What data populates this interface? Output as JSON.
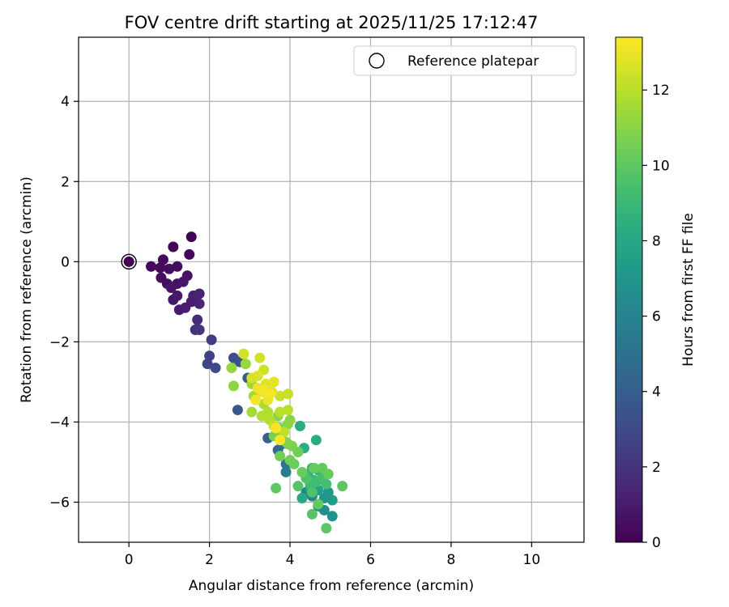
{
  "chart_data": {
    "type": "scatter",
    "title": "FOV centre drift starting at 2025/11/25 17:12:47",
    "xlabel": "Angular distance from reference (arcmin)",
    "ylabel": "Rotation from reference (arcmin)",
    "xlim": [
      -1.25,
      11.3
    ],
    "ylim": [
      -7.0,
      5.6
    ],
    "x_ticks": [
      0,
      2,
      4,
      6,
      8,
      10
    ],
    "y_ticks": [
      -6,
      -4,
      -2,
      0,
      2,
      4
    ],
    "x_tick_labels": [
      "0",
      "2",
      "4",
      "6",
      "8",
      "10"
    ],
    "y_tick_labels": [
      "−6",
      "−4",
      "−2",
      "0",
      "2",
      "4"
    ],
    "grid": true,
    "legend": {
      "position": "top-right",
      "entries": [
        {
          "label": "Reference platepar",
          "marker": "open-circle"
        }
      ]
    },
    "reference_point": {
      "x": 0,
      "y": 0
    },
    "colorbar": {
      "label": "Hours from first FF file",
      "colormap": "viridis",
      "range": [
        0,
        13.4
      ],
      "ticks": [
        0,
        2,
        4,
        6,
        8,
        10,
        12
      ],
      "tick_labels": [
        "0",
        "2",
        "4",
        "6",
        "8",
        "10",
        "12"
      ]
    },
    "series": [
      {
        "name": "FOV centre drift",
        "points": [
          [
            0.0,
            0.0,
            0.0
          ],
          [
            1.55,
            0.62,
            0.1
          ],
          [
            1.1,
            0.37,
            0.15
          ],
          [
            1.5,
            0.18,
            0.2
          ],
          [
            0.55,
            -0.12,
            0.25
          ],
          [
            0.85,
            0.05,
            0.3
          ],
          [
            0.78,
            -0.15,
            0.35
          ],
          [
            1.2,
            -0.12,
            0.4
          ],
          [
            1.0,
            -0.18,
            0.45
          ],
          [
            0.8,
            -0.4,
            0.5
          ],
          [
            0.95,
            -0.55,
            0.55
          ],
          [
            1.2,
            -0.55,
            0.6
          ],
          [
            1.45,
            -0.35,
            0.7
          ],
          [
            1.05,
            -0.65,
            0.75
          ],
          [
            1.35,
            -0.5,
            0.8
          ],
          [
            1.1,
            -0.95,
            0.85
          ],
          [
            1.2,
            -0.85,
            0.9
          ],
          [
            1.25,
            -1.2,
            1.0
          ],
          [
            1.4,
            -1.15,
            1.05
          ],
          [
            1.55,
            -1.0,
            1.1
          ],
          [
            1.6,
            -0.85,
            1.2
          ],
          [
            1.75,
            -0.8,
            1.3
          ],
          [
            1.75,
            -1.05,
            1.4
          ],
          [
            1.7,
            -1.45,
            1.6
          ],
          [
            1.65,
            -1.7,
            1.8
          ],
          [
            1.75,
            -1.7,
            2.0
          ],
          [
            2.05,
            -1.95,
            2.4
          ],
          [
            2.0,
            -2.35,
            2.6
          ],
          [
            1.95,
            -2.55,
            2.8
          ],
          [
            2.15,
            -2.65,
            3.0
          ],
          [
            2.6,
            -2.4,
            3.2
          ],
          [
            2.75,
            -2.5,
            3.4
          ],
          [
            2.7,
            -3.7,
            3.6
          ],
          [
            2.95,
            -2.9,
            3.8
          ],
          [
            3.45,
            -4.4,
            4.0
          ],
          [
            3.7,
            -4.7,
            4.4
          ],
          [
            3.8,
            -4.55,
            4.8
          ],
          [
            3.9,
            -5.05,
            5.2
          ],
          [
            3.9,
            -5.25,
            5.6
          ],
          [
            4.4,
            -5.75,
            6.0
          ],
          [
            4.55,
            -5.85,
            6.2
          ],
          [
            4.7,
            -6.1,
            6.4
          ],
          [
            4.85,
            -6.2,
            6.6
          ],
          [
            5.05,
            -6.35,
            6.8
          ],
          [
            4.85,
            -5.9,
            7.0
          ],
          [
            4.95,
            -5.75,
            7.2
          ],
          [
            5.05,
            -5.95,
            7.4
          ],
          [
            4.7,
            -5.7,
            7.6
          ],
          [
            4.5,
            -5.65,
            7.8
          ],
          [
            4.3,
            -5.9,
            8.0
          ],
          [
            4.25,
            -4.1,
            8.2
          ],
          [
            4.65,
            -4.45,
            8.2
          ],
          [
            4.35,
            -4.65,
            8.4
          ],
          [
            4.55,
            -5.15,
            8.6
          ],
          [
            4.7,
            -5.2,
            8.8
          ],
          [
            4.45,
            -5.3,
            9.0
          ],
          [
            4.6,
            -5.45,
            9.0
          ],
          [
            4.5,
            -5.55,
            9.2
          ],
          [
            4.65,
            -5.5,
            9.2
          ],
          [
            4.8,
            -5.4,
            9.4
          ],
          [
            4.9,
            -5.55,
            9.4
          ],
          [
            4.4,
            -5.4,
            9.6
          ],
          [
            4.55,
            -5.75,
            9.6
          ],
          [
            4.2,
            -5.6,
            9.8
          ],
          [
            4.55,
            -6.3,
            9.8
          ],
          [
            4.9,
            -6.65,
            9.9
          ],
          [
            5.3,
            -5.6,
            10.0
          ],
          [
            3.65,
            -5.65,
            10.0
          ],
          [
            4.7,
            -6.05,
            10.1
          ],
          [
            4.8,
            -5.15,
            10.1
          ],
          [
            4.95,
            -5.3,
            10.2
          ],
          [
            4.6,
            -5.15,
            10.2
          ],
          [
            4.3,
            -5.25,
            10.3
          ],
          [
            4.1,
            -5.05,
            10.3
          ],
          [
            4.0,
            -4.95,
            10.4
          ],
          [
            4.2,
            -4.75,
            10.4
          ],
          [
            3.95,
            -4.55,
            10.5
          ],
          [
            3.75,
            -4.85,
            10.5
          ],
          [
            3.6,
            -4.35,
            10.6
          ],
          [
            3.75,
            -4.15,
            10.7
          ],
          [
            4.05,
            -4.6,
            10.7
          ],
          [
            3.9,
            -4.5,
            10.8
          ],
          [
            3.8,
            -4.25,
            10.9
          ],
          [
            3.95,
            -4.05,
            11.0
          ],
          [
            3.7,
            -3.85,
            11.0
          ],
          [
            4.0,
            -3.95,
            11.1
          ],
          [
            2.6,
            -3.1,
            11.1
          ],
          [
            2.55,
            -2.65,
            11.2
          ],
          [
            2.9,
            -2.55,
            11.3
          ],
          [
            3.05,
            -3.05,
            11.4
          ],
          [
            3.1,
            -3.35,
            11.5
          ],
          [
            3.05,
            -3.75,
            11.6
          ],
          [
            3.35,
            -3.55,
            11.7
          ],
          [
            3.45,
            -3.75,
            11.8
          ],
          [
            3.3,
            -3.85,
            11.8
          ],
          [
            3.5,
            -3.95,
            11.9
          ],
          [
            3.75,
            -3.75,
            12.0
          ],
          [
            3.95,
            -3.7,
            12.0
          ],
          [
            3.85,
            -4.25,
            12.1
          ],
          [
            3.6,
            -4.1,
            12.2
          ],
          [
            3.95,
            -3.3,
            12.3
          ],
          [
            3.75,
            -3.35,
            12.3
          ],
          [
            3.35,
            -2.7,
            12.4
          ],
          [
            3.25,
            -2.4,
            12.5
          ],
          [
            2.85,
            -2.3,
            12.5
          ],
          [
            3.05,
            -2.9,
            12.6
          ],
          [
            3.2,
            -2.85,
            12.7
          ],
          [
            3.4,
            -3.05,
            12.8
          ],
          [
            3.55,
            -3.25,
            12.8
          ],
          [
            3.6,
            -3.0,
            12.9
          ],
          [
            3.3,
            -3.25,
            13.0
          ],
          [
            3.45,
            -3.45,
            13.0
          ],
          [
            3.2,
            -3.15,
            13.1
          ],
          [
            3.35,
            -3.2,
            13.2
          ],
          [
            3.65,
            -4.15,
            13.3
          ],
          [
            3.75,
            -4.45,
            13.4
          ],
          [
            3.15,
            -3.45,
            13.2
          ],
          [
            3.5,
            -3.3,
            13.3
          ]
        ]
      }
    ]
  }
}
